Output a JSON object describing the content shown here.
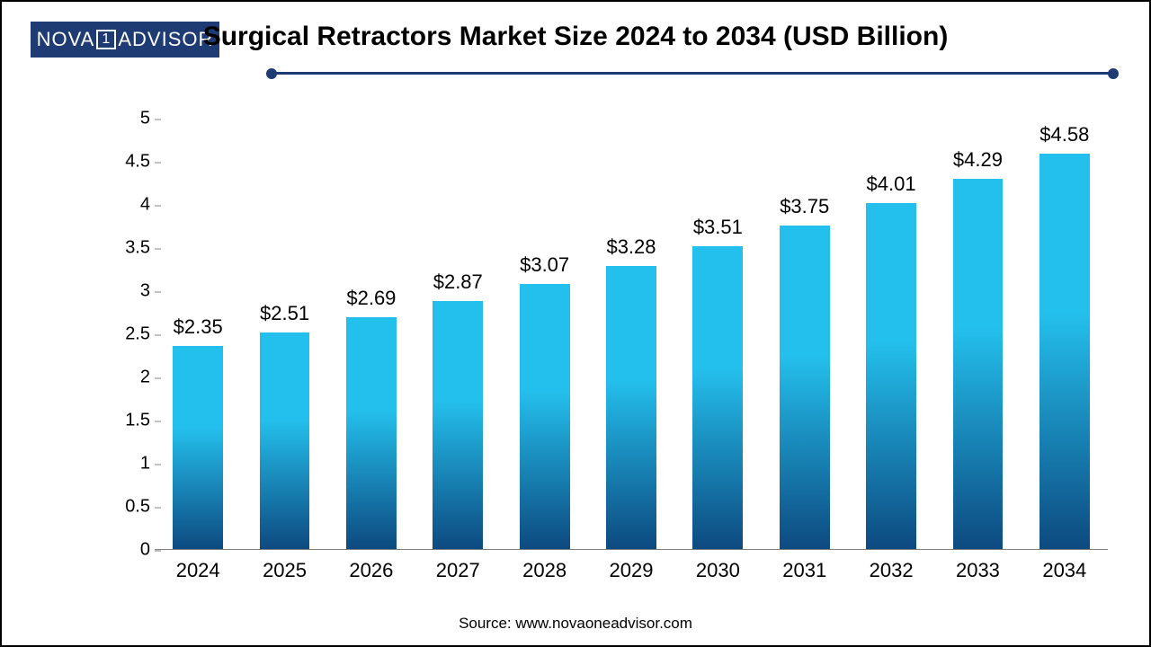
{
  "logo": {
    "left": "NOVA",
    "mid": "1",
    "right": "ADVISOR"
  },
  "title": "Surgical Retractors Market Size 2024 to 2034 (USD Billion)",
  "source": "Source: www.novaoneadvisor.com",
  "chart": {
    "type": "bar",
    "categories": [
      "2024",
      "2025",
      "2026",
      "2027",
      "2028",
      "2029",
      "2030",
      "2031",
      "2032",
      "2033",
      "2034"
    ],
    "values": [
      2.35,
      2.51,
      2.69,
      2.87,
      3.07,
      3.28,
      3.51,
      3.75,
      4.01,
      4.29,
      4.58
    ],
    "value_labels": [
      "$2.35",
      "$2.51",
      "$2.69",
      "$2.87",
      "$3.07",
      "$3.28",
      "$3.51",
      "$3.75",
      "$4.01",
      "$4.29",
      "$4.58"
    ],
    "ylim": [
      0,
      5
    ],
    "ytick_step": 0.5,
    "yticks": [
      "0",
      "0.5",
      "1",
      "1.5",
      "2",
      "2.5",
      "3",
      "3.5",
      "4",
      "4.5",
      "5"
    ],
    "bar_gradient_top": "#24c0ed",
    "bar_gradient_bottom": "#0d4a80",
    "background_color": "#ffffff",
    "axis_color": "#808080",
    "title_color": "#000000",
    "rule_color": "#1f3b73",
    "title_fontsize": 30,
    "label_fontsize": 22,
    "tick_fontsize": 20,
    "bar_width_ratio": 0.58
  }
}
